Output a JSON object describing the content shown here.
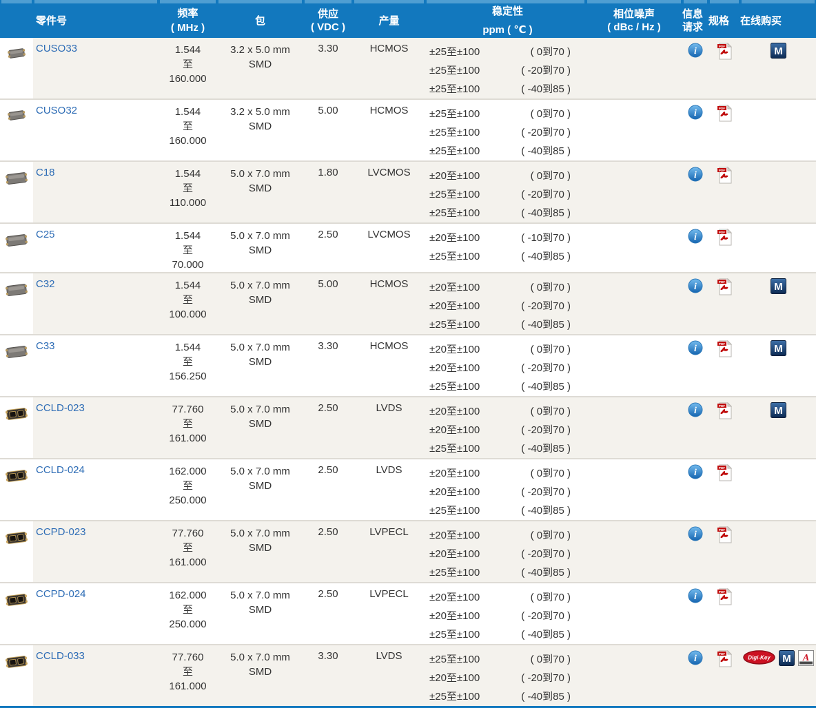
{
  "colors": {
    "header_bg": "#1278be",
    "header_top_strip": "#4f9ed2",
    "header_text": "#ffffff",
    "row_stripe": "#f4f2ed",
    "row_white": "#ffffff",
    "row_border": "#dedbd5",
    "link_blue": "#2d6cb5",
    "body_text": "#333333",
    "info_icon_blue": "#2f84c6",
    "pdf_red": "#c00d0d",
    "mouser_navy": "#0c2a52",
    "digikey_red": "#cc1122",
    "arrow_red": "#cc1122"
  },
  "header": {
    "columns": [
      {
        "id": "image",
        "label": "",
        "sub": ""
      },
      {
        "id": "part",
        "label": "零件号",
        "sub": ""
      },
      {
        "id": "freq",
        "label": "频率",
        "sub": "( MHz )"
      },
      {
        "id": "pkg",
        "label": "包",
        "sub": ""
      },
      {
        "id": "supply",
        "label": "供应",
        "sub": "( VDC )"
      },
      {
        "id": "output",
        "label": "产量",
        "sub": ""
      },
      {
        "id": "stability",
        "label": "稳定性",
        "sub": "ppm ( ℃ )"
      },
      {
        "id": "phase",
        "label": "相位噪声",
        "sub": "( dBc / Hz )"
      },
      {
        "id": "info",
        "label": "信息",
        "sub": "请求"
      },
      {
        "id": "spec",
        "label": "规格",
        "sub": ""
      },
      {
        "id": "buy",
        "label": "在线购买",
        "sub": ""
      }
    ]
  },
  "icon_names": {
    "info": "info-icon",
    "pdf": "pdf-datasheet-icon",
    "mouser": "mouser-buy-icon",
    "digikey": "digikey-buy-icon",
    "arrow": "arrow-buy-icon"
  },
  "icon_labels": {
    "pdf_banner": "PDF",
    "mouser_letter": "M",
    "digikey_text": "Digi-Key",
    "arrow_letter": "A"
  },
  "rows": [
    {
      "part": "CUSO33",
      "chip": "small-gray",
      "freq": {
        "min": "1.544",
        "to": "至",
        "max": "160.000"
      },
      "package": {
        "line1": "3.2 x 5.0 mm",
        "line2": "SMD"
      },
      "supply": "3.30",
      "output": "HCMOS",
      "stability": [
        {
          "range": "±25至±100",
          "temp": "( 0到70 )"
        },
        {
          "range": "±25至±100",
          "temp": "( -20到70 )"
        },
        {
          "range": "±25至±100",
          "temp": "( -40到85 )"
        }
      ],
      "phase_noise": "",
      "info_request": true,
      "spec_pdf": true,
      "buy": [
        "mouser"
      ]
    },
    {
      "part": "CUSO32",
      "chip": "small-gray",
      "freq": {
        "min": "1.544",
        "to": "至",
        "max": "160.000"
      },
      "package": {
        "line1": "3.2 x 5.0 mm",
        "line2": "SMD"
      },
      "supply": "5.00",
      "output": "HCMOS",
      "stability": [
        {
          "range": "±25至±100",
          "temp": "( 0到70 )"
        },
        {
          "range": "±25至±100",
          "temp": "( -20到70 )"
        },
        {
          "range": "±25至±100",
          "temp": "( -40到85 )"
        }
      ],
      "phase_noise": "",
      "info_request": true,
      "spec_pdf": true,
      "buy": []
    },
    {
      "part": "C18",
      "chip": "big-gray",
      "freq": {
        "min": "1.544",
        "to": "至",
        "max": "110.000"
      },
      "package": {
        "line1": "5.0 x 7.0 mm",
        "line2": "SMD"
      },
      "supply": "1.80",
      "output": "LVCMOS",
      "stability": [
        {
          "range": "±20至±100",
          "temp": "( 0到70 )"
        },
        {
          "range": "±25至±100",
          "temp": "( -20到70 )"
        },
        {
          "range": "±25至±100",
          "temp": "( -40到85 )"
        }
      ],
      "phase_noise": "",
      "info_request": true,
      "spec_pdf": true,
      "buy": []
    },
    {
      "part": "C25",
      "chip": "big-gray",
      "freq": {
        "min": "1.544",
        "to": "至",
        "max": "70.000"
      },
      "package": {
        "line1": "5.0 x 7.0 mm",
        "line2": "SMD"
      },
      "supply": "2.50",
      "output": "LVCMOS",
      "stability": [
        {
          "range": "±20至±100",
          "temp": "( -10到70 )"
        },
        {
          "range": "±25至±100",
          "temp": "( -40到85 )"
        }
      ],
      "phase_noise": "",
      "info_request": true,
      "spec_pdf": true,
      "buy": []
    },
    {
      "part": "C32",
      "chip": "big-gray",
      "freq": {
        "min": "1.544",
        "to": "至",
        "max": "100.000"
      },
      "package": {
        "line1": "5.0 x 7.0 mm",
        "line2": "SMD"
      },
      "supply": "5.00",
      "output": "HCMOS",
      "stability": [
        {
          "range": "±20至±100",
          "temp": "( 0到70 )"
        },
        {
          "range": "±20至±100",
          "temp": "( -20到70 )"
        },
        {
          "range": "±25至±100",
          "temp": "( -40到85 )"
        }
      ],
      "phase_noise": "",
      "info_request": true,
      "spec_pdf": true,
      "buy": [
        "mouser"
      ]
    },
    {
      "part": "C33",
      "chip": "big-gray",
      "freq": {
        "min": "1.544",
        "to": "至",
        "max": "156.250"
      },
      "package": {
        "line1": "5.0 x 7.0 mm",
        "line2": "SMD"
      },
      "supply": "3.30",
      "output": "HCMOS",
      "stability": [
        {
          "range": "±20至±100",
          "temp": "( 0到70 )"
        },
        {
          "range": "±20至±100",
          "temp": "( -20到70 )"
        },
        {
          "range": "±25至±100",
          "temp": "( -40到85 )"
        }
      ],
      "phase_noise": "",
      "info_request": true,
      "spec_pdf": true,
      "buy": [
        "mouser"
      ]
    },
    {
      "part": "CCLD-023",
      "chip": "big-gold",
      "freq": {
        "min": "77.760",
        "to": "至",
        "max": "161.000"
      },
      "package": {
        "line1": "5.0 x 7.0 mm",
        "line2": "SMD"
      },
      "supply": "2.50",
      "output": "LVDS",
      "stability": [
        {
          "range": "±20至±100",
          "temp": "( 0到70 )"
        },
        {
          "range": "±20至±100",
          "temp": "( -20到70 )"
        },
        {
          "range": "±25至±100",
          "temp": "( -40到85 )"
        }
      ],
      "phase_noise": "",
      "info_request": true,
      "spec_pdf": true,
      "buy": [
        "mouser"
      ]
    },
    {
      "part": "CCLD-024",
      "chip": "big-gold",
      "freq": {
        "min": "162.000",
        "to": "至",
        "max": "250.000"
      },
      "package": {
        "line1": "5.0 x 7.0 mm",
        "line2": "SMD"
      },
      "supply": "2.50",
      "output": "LVDS",
      "stability": [
        {
          "range": "±20至±100",
          "temp": "( 0到70 )"
        },
        {
          "range": "±20至±100",
          "temp": "( -20到70 )"
        },
        {
          "range": "±25至±100",
          "temp": "( -40到85 )"
        }
      ],
      "phase_noise": "",
      "info_request": true,
      "spec_pdf": true,
      "buy": []
    },
    {
      "part": "CCPD-023",
      "chip": "big-gold",
      "freq": {
        "min": "77.760",
        "to": "至",
        "max": "161.000"
      },
      "package": {
        "line1": "5.0 x 7.0 mm",
        "line2": "SMD"
      },
      "supply": "2.50",
      "output": "LVPECL",
      "stability": [
        {
          "range": "±20至±100",
          "temp": "( 0到70 )"
        },
        {
          "range": "±20至±100",
          "temp": "( -20到70 )"
        },
        {
          "range": "±25至±100",
          "temp": "( -40到85 )"
        }
      ],
      "phase_noise": "",
      "info_request": true,
      "spec_pdf": true,
      "buy": []
    },
    {
      "part": "CCPD-024",
      "chip": "big-gold",
      "freq": {
        "min": "162.000",
        "to": "至",
        "max": "250.000"
      },
      "package": {
        "line1": "5.0 x 7.0 mm",
        "line2": "SMD"
      },
      "supply": "2.50",
      "output": "LVPECL",
      "stability": [
        {
          "range": "±20至±100",
          "temp": "( 0到70 )"
        },
        {
          "range": "±20至±100",
          "temp": "( -20到70 )"
        },
        {
          "range": "±25至±100",
          "temp": "( -40到85 )"
        }
      ],
      "phase_noise": "",
      "info_request": true,
      "spec_pdf": true,
      "buy": []
    },
    {
      "part": "CCLD-033",
      "chip": "big-gold",
      "freq": {
        "min": "77.760",
        "to": "至",
        "max": "161.000"
      },
      "package": {
        "line1": "5.0 x 7.0 mm",
        "line2": "SMD"
      },
      "supply": "3.30",
      "output": "LVDS",
      "stability": [
        {
          "range": "±25至±100",
          "temp": "( 0到70 )"
        },
        {
          "range": "±20至±100",
          "temp": "( -20到70 )"
        },
        {
          "range": "±25至±100",
          "temp": "( -40到85 )"
        }
      ],
      "phase_noise": "",
      "info_request": true,
      "spec_pdf": true,
      "buy": [
        "digikey",
        "mouser",
        "arrow"
      ]
    }
  ]
}
